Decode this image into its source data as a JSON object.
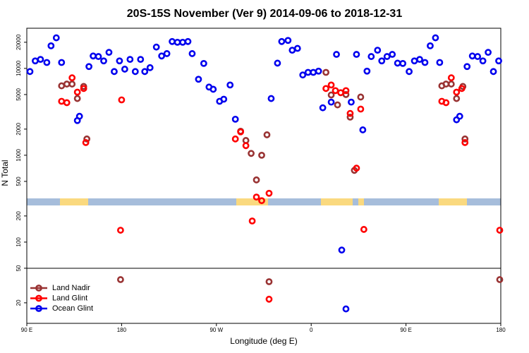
{
  "chart_data": {
    "type": "scatter",
    "title": "20S-15S November (Ver 9)   2014-09-06 to 2018-12-31",
    "x_label": "Longitude (deg E)",
    "y_label": "N Total",
    "xlim": [
      90,
      540
    ],
    "xticks": [
      {
        "value": 90,
        "label": "90 E"
      },
      {
        "value": 180,
        "label": "180"
      },
      {
        "value": 270,
        "label": "90 W"
      },
      {
        "value": 360,
        "label": "0"
      },
      {
        "value": 450,
        "label": "90 E"
      },
      {
        "value": 540,
        "label": "180"
      }
    ],
    "ylim": [
      11.6,
      29000
    ],
    "y_log": true,
    "yticks": [
      20,
      50,
      100,
      200,
      500,
      1000,
      2000,
      5000,
      10000,
      20000
    ],
    "hlines": [
      50
    ],
    "legend": "lower left",
    "series": [
      {
        "name": "Land Nadir",
        "color": "#993333",
        "x": [
          123,
          128,
          133,
          138,
          144,
          147,
          179,
          293,
          298,
          303,
          308,
          313,
          318,
          320,
          374,
          379,
          385,
          393,
          397,
          401,
          407,
          484,
          488,
          493,
          498,
          504,
          506,
          539
        ],
        "values": [
          6300,
          6600,
          6600,
          4500,
          6200,
          1540,
          37,
          1890,
          1480,
          1050,
          520,
          1000,
          1720,
          35,
          9000,
          4940,
          3800,
          5000,
          2750,
          670,
          4680,
          6300,
          6600,
          6600,
          4500,
          6200,
          1540,
          37
        ]
      },
      {
        "name": "Land Glint",
        "color": "#ff0000",
        "x": [
          123,
          128,
          133,
          138,
          144,
          146,
          180,
          179,
          288,
          293,
          298,
          304,
          308,
          313,
          320,
          320,
          374,
          379,
          383,
          388,
          393,
          397,
          403,
          407,
          410,
          484,
          488,
          493,
          498,
          503,
          506,
          539
        ],
        "values": [
          4180,
          4030,
          7800,
          5330,
          5870,
          1400,
          4340,
          137,
          1540,
          1860,
          1290,
          175,
          330,
          300,
          365,
          22,
          5870,
          6440,
          5550,
          5250,
          5550,
          3030,
          710,
          3400,
          140,
          4180,
          4030,
          7800,
          5330,
          5870,
          1400,
          137
        ]
      },
      {
        "name": "Ocean Glint",
        "color": "#0000ee",
        "x": [
          93,
          98,
          103,
          109,
          113,
          118,
          123,
          138,
          140,
          149,
          153,
          158,
          163,
          168,
          173,
          178,
          183,
          188,
          193,
          198,
          202,
          207,
          213,
          218,
          223,
          228,
          233,
          238,
          243,
          247,
          253,
          258,
          263,
          267,
          273,
          277,
          283,
          288,
          322,
          328,
          332,
          338,
          342,
          347,
          352,
          357,
          362,
          367,
          371,
          379,
          384,
          389,
          393,
          398,
          403,
          409,
          413,
          417,
          423,
          427,
          432,
          437,
          442,
          447,
          453,
          458,
          463,
          468,
          473,
          478,
          482,
          498,
          501,
          508,
          513,
          518,
          523,
          528,
          533,
          538
        ],
        "values": [
          9200,
          12200,
          12700,
          11700,
          18200,
          22500,
          11700,
          2510,
          2810,
          10500,
          13900,
          13700,
          12200,
          15300,
          9200,
          12200,
          9800,
          12700,
          9200,
          12700,
          9200,
          10200,
          17600,
          13900,
          14800,
          20400,
          20000,
          20000,
          20400,
          14800,
          7500,
          11400,
          6100,
          5750,
          4180,
          4420,
          6440,
          2600,
          4500,
          11500,
          20400,
          21000,
          16200,
          17000,
          8400,
          9000,
          9000,
          9300,
          3520,
          4090,
          14500,
          81,
          17,
          4090,
          14500,
          1960,
          9300,
          13700,
          16200,
          12200,
          13700,
          14500,
          11500,
          11400,
          9200,
          12200,
          12700,
          11700,
          18200,
          22500,
          11700,
          2560,
          2810,
          10500,
          13900,
          13700,
          12200,
          15300,
          9200,
          12200
        ]
      }
    ]
  }
}
